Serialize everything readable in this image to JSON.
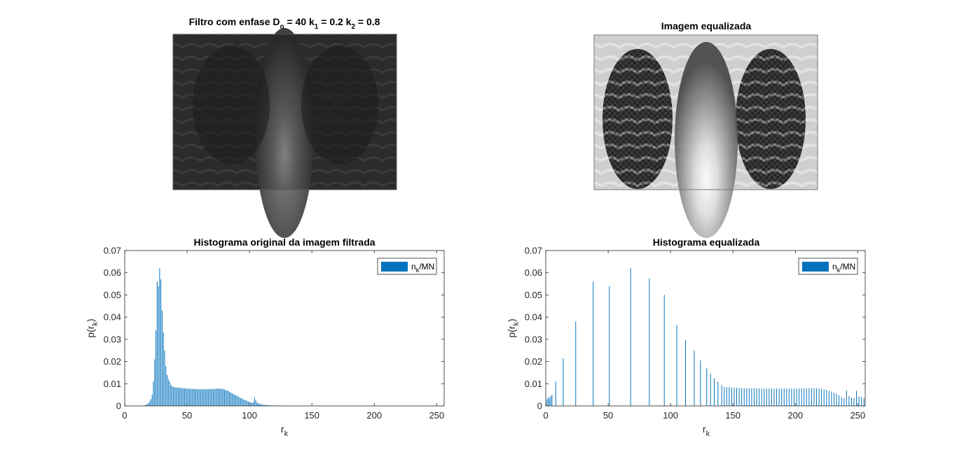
{
  "figure": {
    "image1": {
      "title": "Filtro com enfase D",
      "title_sub1": "o",
      "title_mid1": " = 40 k",
      "title_sub2": "1",
      "title_mid2": " = 0.2 k",
      "title_sub3": "2",
      "title_end": " = 0.8"
    },
    "image2": {
      "title": "Imagem equalizada"
    }
  },
  "colors": {
    "bar": "#0072BD",
    "axis": "#262626"
  },
  "chart_data": [
    {
      "type": "bar",
      "title": "Histograma original da imagem filtrada",
      "xlabel": "r",
      "xlabel_sub": "k",
      "ylabel": "p(r",
      "ylabel_sub": "k",
      "ylabel_end": ")",
      "xlim": [
        0,
        256
      ],
      "ylim": [
        0,
        0.07
      ],
      "xticks": [
        "0",
        "50",
        "100",
        "150",
        "200",
        "250"
      ],
      "yticks": [
        "0",
        "0.01",
        "0.02",
        "0.03",
        "0.04",
        "0.05",
        "0.06",
        "0.07"
      ],
      "legend": {
        "label": "n",
        "label_sub": "k",
        "label_end": "/MN",
        "position": "top-right"
      },
      "x": [
        16,
        17,
        18,
        19,
        20,
        21,
        22,
        23,
        24,
        25,
        26,
        27,
        28,
        29,
        30,
        31,
        32,
        33,
        34,
        35,
        36,
        37,
        38,
        39,
        40,
        41,
        42,
        43,
        44,
        45,
        46,
        47,
        48,
        49,
        50,
        51,
        52,
        53,
        54,
        55,
        56,
        57,
        58,
        59,
        60,
        61,
        62,
        63,
        64,
        65,
        66,
        67,
        68,
        69,
        70,
        71,
        72,
        73,
        74,
        75,
        76,
        77,
        78,
        79,
        80,
        81,
        82,
        83,
        84,
        85,
        86,
        87,
        88,
        89,
        90,
        91,
        92,
        93,
        94,
        95,
        96,
        97,
        98,
        99,
        100,
        101,
        102,
        103,
        104,
        105,
        106,
        107,
        108,
        109,
        110,
        111,
        112,
        113,
        114,
        115,
        116,
        117,
        118,
        119,
        120,
        121,
        122,
        123,
        124,
        125
      ],
      "values": [
        0.0003,
        0.0005,
        0.0008,
        0.0012,
        0.002,
        0.003,
        0.005,
        0.011,
        0.021,
        0.034,
        0.056,
        0.054,
        0.062,
        0.057,
        0.043,
        0.033,
        0.025,
        0.018,
        0.014,
        0.012,
        0.011,
        0.0095,
        0.009,
        0.0085,
        0.0085,
        0.0083,
        0.0083,
        0.0082,
        0.0082,
        0.0081,
        0.008,
        0.008,
        0.0079,
        0.0079,
        0.0078,
        0.0078,
        0.0077,
        0.0077,
        0.0077,
        0.0076,
        0.0076,
        0.0076,
        0.0076,
        0.0075,
        0.0075,
        0.0075,
        0.0075,
        0.0075,
        0.0075,
        0.0075,
        0.0075,
        0.0075,
        0.0076,
        0.0076,
        0.0076,
        0.0076,
        0.0077,
        0.0077,
        0.0078,
        0.0078,
        0.0078,
        0.0078,
        0.0077,
        0.0076,
        0.0074,
        0.0072,
        0.007,
        0.0067,
        0.0064,
        0.006,
        0.0057,
        0.0054,
        0.0051,
        0.0048,
        0.0045,
        0.0042,
        0.0039,
        0.0036,
        0.0033,
        0.003,
        0.0028,
        0.0025,
        0.0023,
        0.002,
        0.0018,
        0.0016,
        0.0014,
        0.0017,
        0.0038,
        0.0026,
        0.0015,
        0.0012,
        0.001,
        0.0008,
        0.0007,
        0.0006,
        0.0005,
        0.0004,
        0.0004,
        0.0003,
        0.0003,
        0.0002,
        0.0002,
        0.0002,
        0.0001,
        0.0001,
        0.0001,
        0.0001,
        0.0001,
        0.0001
      ]
    },
    {
      "type": "bar",
      "title": "Histograma equalizada",
      "xlabel": "r",
      "xlabel_sub": "k",
      "ylabel": "p(r",
      "ylabel_sub": "k",
      "ylabel_end": ")",
      "xlim": [
        0,
        256
      ],
      "ylim": [
        0,
        0.07
      ],
      "xticks": [
        "0",
        "50",
        "100",
        "150",
        "200",
        "250"
      ],
      "yticks": [
        "0",
        "0.01",
        "0.02",
        "0.03",
        "0.04",
        "0.05",
        "0.06",
        "0.07"
      ],
      "legend": {
        "label": "n",
        "label_sub": "k",
        "label_end": "/MN",
        "position": "top-right"
      },
      "x": [
        1,
        2,
        3,
        4,
        5,
        8,
        14,
        24,
        38,
        51,
        68,
        83,
        95,
        105,
        112,
        119,
        124,
        129,
        132,
        135,
        138,
        141,
        143,
        145,
        147,
        149,
        151,
        153,
        155,
        157,
        159,
        161,
        163,
        165,
        167,
        169,
        171,
        173,
        175,
        177,
        179,
        181,
        183,
        185,
        187,
        189,
        191,
        193,
        195,
        197,
        199,
        201,
        203,
        205,
        207,
        209,
        211,
        213,
        215,
        217,
        219,
        221,
        223,
        225,
        227,
        229,
        231,
        233,
        235,
        237,
        239,
        241,
        243,
        245,
        247,
        249,
        251,
        253,
        255
      ],
      "values": [
        0.003,
        0.004,
        0.0035,
        0.0045,
        0.005,
        0.011,
        0.0215,
        0.038,
        0.056,
        0.054,
        0.062,
        0.0575,
        0.05,
        0.0365,
        0.0295,
        0.025,
        0.0205,
        0.017,
        0.0145,
        0.0125,
        0.011,
        0.0095,
        0.0085,
        0.0085,
        0.0085,
        0.0083,
        0.0082,
        0.0082,
        0.0081,
        0.0081,
        0.008,
        0.008,
        0.008,
        0.0079,
        0.0079,
        0.0079,
        0.0078,
        0.0078,
        0.0078,
        0.0078,
        0.0078,
        0.0078,
        0.0078,
        0.0078,
        0.0078,
        0.0078,
        0.0078,
        0.0078,
        0.0078,
        0.0078,
        0.0078,
        0.0078,
        0.0078,
        0.0079,
        0.0079,
        0.0079,
        0.008,
        0.008,
        0.008,
        0.0079,
        0.0078,
        0.0077,
        0.0075,
        0.0072,
        0.0068,
        0.0064,
        0.006,
        0.0055,
        0.0048,
        0.004,
        0.0035,
        0.007,
        0.0045,
        0.0038,
        0.0035,
        0.0068,
        0.0042,
        0.004,
        0.0035
      ]
    }
  ]
}
